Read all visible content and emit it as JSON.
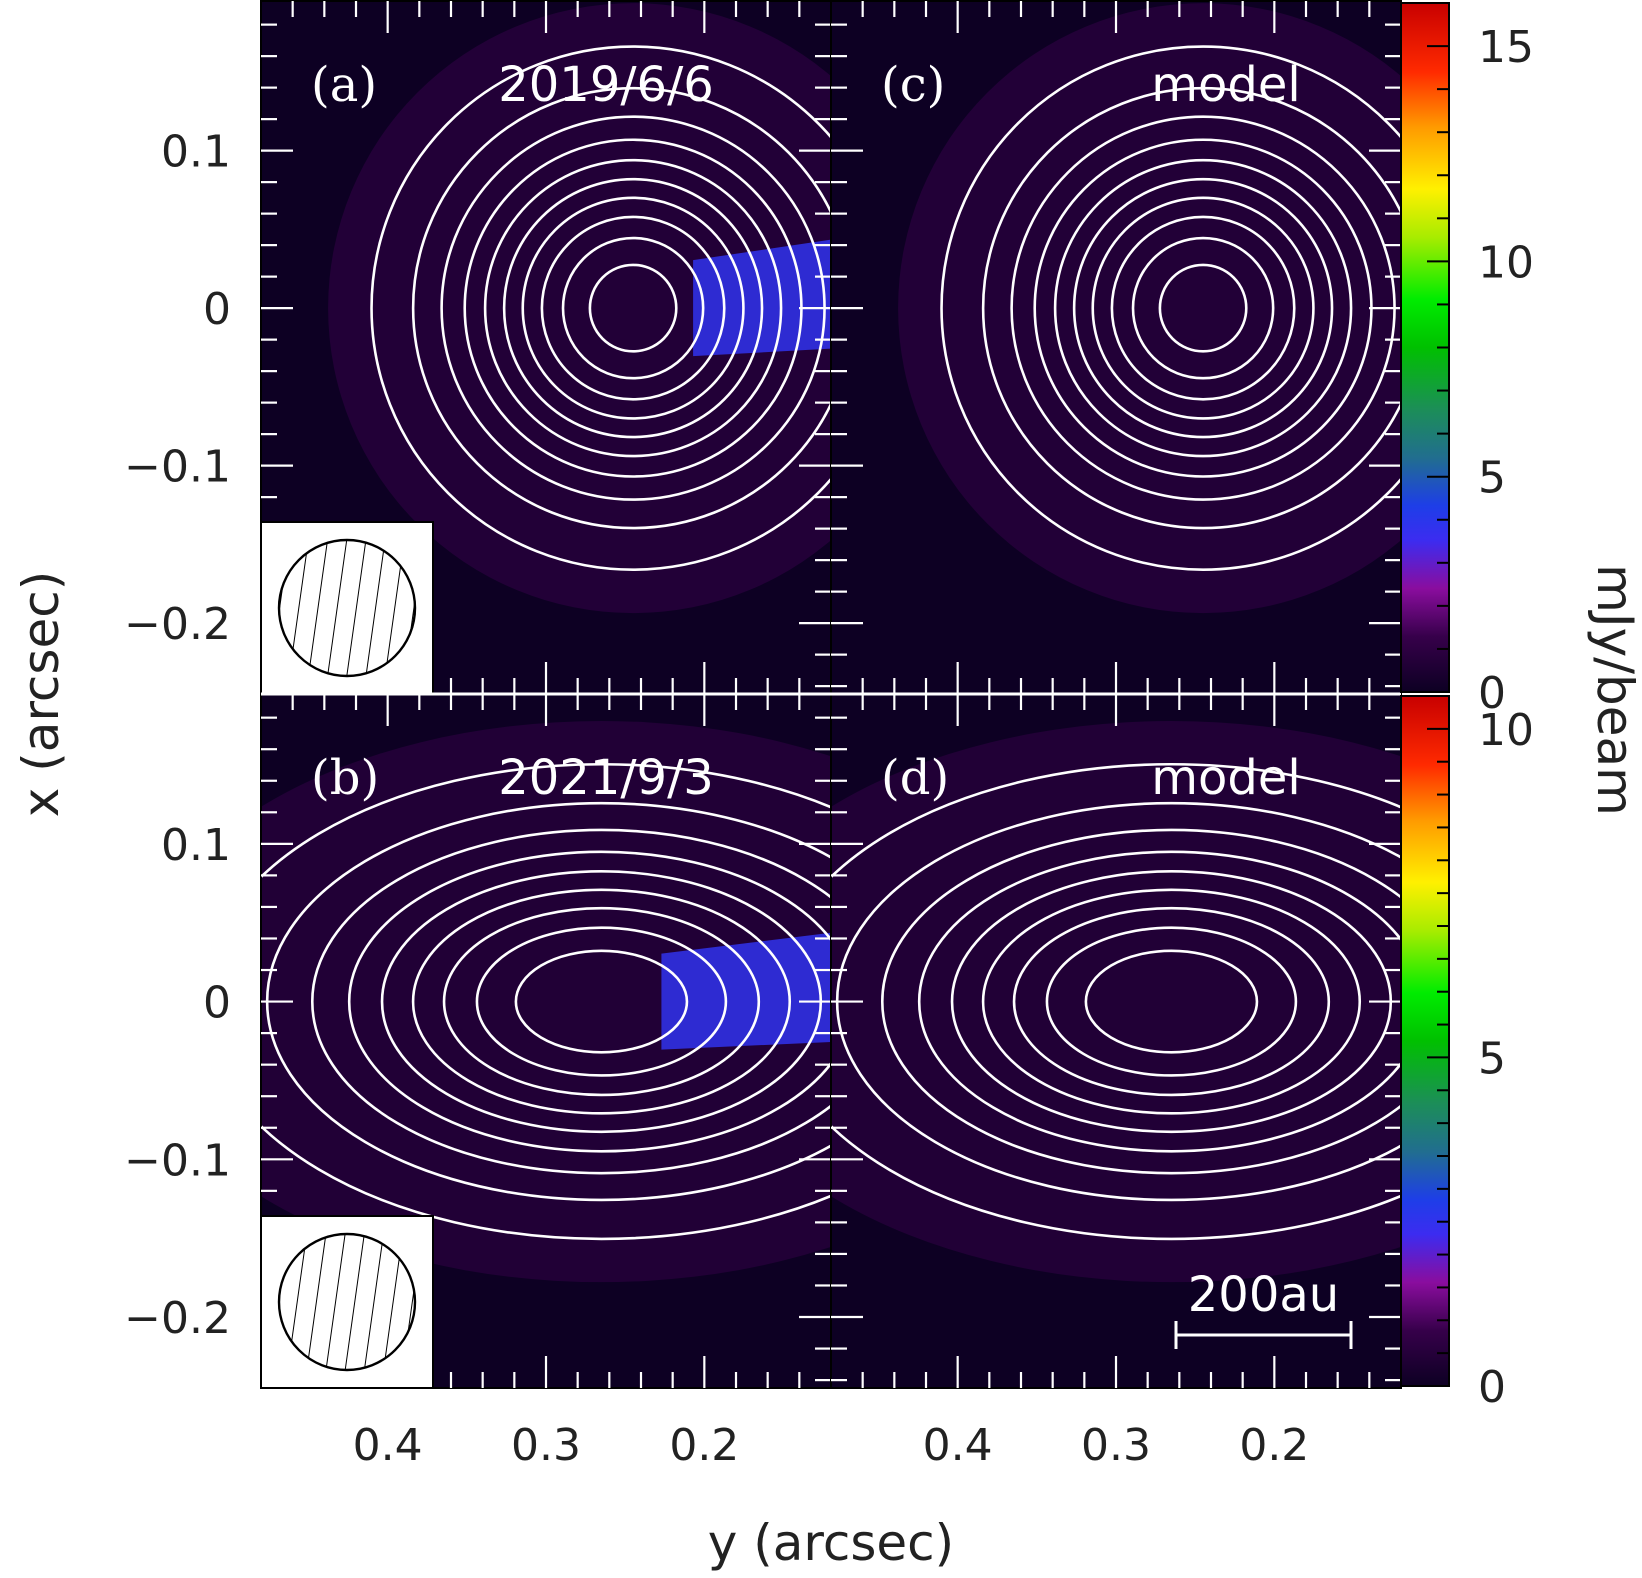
{
  "figure": {
    "xlabel": "y (arcsec)",
    "ylabel": "x (arcsec)",
    "colorbar_label": "mJy/beam",
    "scalebar_label": "200au"
  },
  "chart_data": [
    {
      "type": "heatmap",
      "panel": "(a)",
      "title": "2019/6/6",
      "xlim": [
        0.48,
        0.12
      ],
      "ylim": [
        -0.245,
        0.195
      ],
      "xticks": [
        "0.4",
        "0.3",
        "0.2"
      ],
      "yticks": [
        "0.1",
        "0",
        "−0.1",
        "−0.2"
      ],
      "peak": 16,
      "source": {
        "y": 0.245,
        "x": 0.0
      },
      "contour_levels": [
        1.5,
        3,
        4.5,
        6,
        7.5,
        9,
        10.5,
        12,
        13.5,
        15
      ],
      "beam_shown": true
    },
    {
      "type": "heatmap",
      "panel": "(b)",
      "title": "2021/9/3",
      "xlim": [
        0.48,
        0.12
      ],
      "ylim": [
        -0.245,
        0.195
      ],
      "peak": 10,
      "source": {
        "y": 0.265,
        "x": 0.0
      },
      "contour_levels": [
        1,
        2,
        3,
        4,
        5,
        6,
        7,
        8,
        9
      ],
      "beam_shown": true
    },
    {
      "type": "heatmap",
      "panel": "(c)",
      "title": "model",
      "xlim": [
        0.48,
        0.12
      ],
      "ylim": [
        -0.245,
        0.195
      ],
      "xticks": [
        "0.4",
        "0.3",
        "0.2"
      ],
      "peak": 16,
      "source": {
        "y": 0.245,
        "x": 0.0
      },
      "contour_levels": [
        1.5,
        3,
        4.5,
        6,
        7.5,
        9,
        10.5,
        12,
        13.5,
        15
      ],
      "colorbar": {
        "min": 0,
        "max": 16,
        "ticks": [
          "0",
          "5",
          "10",
          "15"
        ]
      }
    },
    {
      "type": "heatmap",
      "panel": "(d)",
      "title": "model",
      "xlim": [
        0.48,
        0.12
      ],
      "ylim": [
        -0.245,
        0.195
      ],
      "peak": 10,
      "source": {
        "y": 0.265,
        "x": 0.0
      },
      "contour_levels": [
        1,
        2,
        3,
        4,
        5,
        6,
        7,
        8,
        9
      ],
      "colorbar": {
        "min": 0,
        "max": 10.5,
        "ticks": [
          "0",
          "5",
          "10"
        ]
      },
      "scalebar_au": 200
    }
  ]
}
